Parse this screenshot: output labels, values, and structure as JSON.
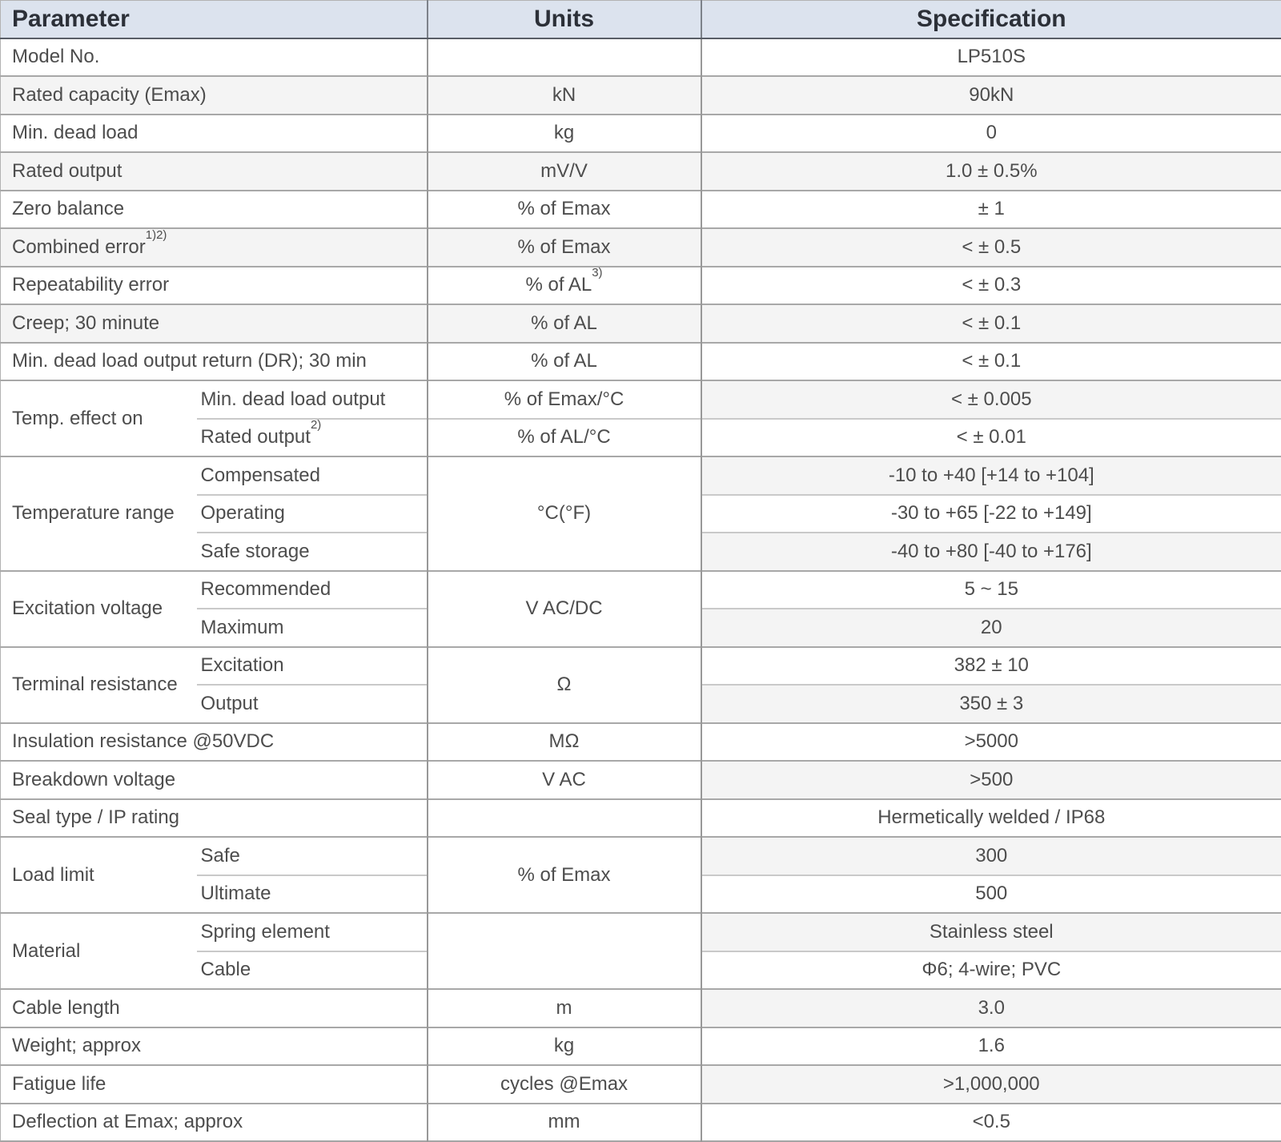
{
  "page_title": "LP510S load cell specification table",
  "header": {
    "parameter": "Parameter",
    "units": "Units",
    "specification": "Specification"
  },
  "rows": {
    "model_no": {
      "param": "Model No.",
      "units": "",
      "spec": "LP510S"
    },
    "rated_capacity": {
      "param": "Rated capacity (Emax)",
      "units": "kN",
      "spec": "90kN"
    },
    "min_dead_load": {
      "param": "Min. dead load",
      "units": "kg",
      "spec": "0"
    },
    "rated_output": {
      "param": "Rated output",
      "units": "mV/V",
      "spec": "1.0 ± 0.5%"
    },
    "zero_balance": {
      "param": "Zero balance",
      "units": "% of Emax",
      "spec": "± 1"
    },
    "combined_error": {
      "param": "Combined error",
      "param_sup": "1)2)",
      "units": "% of Emax",
      "spec": "< ± 0.5"
    },
    "repeatability_error": {
      "param": "Repeatability error",
      "units": "% of AL",
      "units_sup": "3)",
      "spec": "< ± 0.3"
    },
    "creep": {
      "param": "Creep; 30 minute",
      "units": "% of AL",
      "spec": "< ± 0.1"
    },
    "dead_load_output_return": {
      "param": "Min. dead load output return (DR); 30 min",
      "units": "% of AL",
      "spec": "< ± 0.1"
    },
    "temp_effect": {
      "label": "Temp. effect on",
      "min_dead_load_output": {
        "sub": "Min. dead load output",
        "units": "% of Emax/°C",
        "spec": "< ± 0.005"
      },
      "rated_output": {
        "sub": "Rated output",
        "sub_sup": "2)",
        "units": "% of AL/°C",
        "spec": "< ± 0.01"
      }
    },
    "temp_range": {
      "label": "Temperature range",
      "units": "°C(°F)",
      "compensated": {
        "sub": "Compensated",
        "spec": "-10 to +40 [+14 to +104]"
      },
      "operating": {
        "sub": "Operating",
        "spec": "-30 to +65 [-22 to +149]"
      },
      "safe_storage": {
        "sub": "Safe storage",
        "spec": "-40 to +80 [-40 to +176]"
      }
    },
    "excitation_voltage": {
      "label": "Excitation voltage",
      "units": "V AC/DC",
      "recommended": {
        "sub": "Recommended",
        "spec": "5 ~ 15"
      },
      "maximum": {
        "sub": "Maximum",
        "spec": "20"
      }
    },
    "terminal_resistance": {
      "label": "Terminal resistance",
      "units": "Ω",
      "excitation": {
        "sub": "Excitation",
        "spec": "382 ± 10"
      },
      "output": {
        "sub": "Output",
        "spec": "350 ± 3"
      }
    },
    "insulation_resistance": {
      "param": "Insulation resistance @50VDC",
      "units": "MΩ",
      "spec": ">5000"
    },
    "breakdown_voltage": {
      "param": "Breakdown voltage",
      "units": "V AC",
      "spec": ">500"
    },
    "seal_type": {
      "param": "Seal type / IP rating",
      "units": "",
      "spec": "Hermetically welded / IP68"
    },
    "load_limit": {
      "label": "Load limit",
      "units": "% of Emax",
      "safe": {
        "sub": "Safe",
        "spec": "300"
      },
      "ultimate": {
        "sub": "Ultimate",
        "spec": "500"
      }
    },
    "material": {
      "label": "Material",
      "units": "",
      "spring_element": {
        "sub": "Spring element",
        "spec": "Stainless steel"
      },
      "cable": {
        "sub": "Cable",
        "spec": "Φ6; 4-wire; PVC"
      }
    },
    "cable_length": {
      "param": "Cable length",
      "units": "m",
      "spec": "3.0"
    },
    "weight": {
      "param": "Weight; approx",
      "units": "kg",
      "spec": "1.6"
    },
    "fatigue_life": {
      "param": "Fatigue life",
      "units": "cycles @Emax",
      "spec": ">1,000,000"
    },
    "deflection": {
      "param": "Deflection at Emax; approx",
      "units": "mm",
      "spec": "<0.5"
    }
  },
  "colors": {
    "header_bg": "#dce3ee",
    "stripe_bg": "#f4f4f4",
    "body_text": "#4d4d4d",
    "header_text": "#2c3038"
  }
}
